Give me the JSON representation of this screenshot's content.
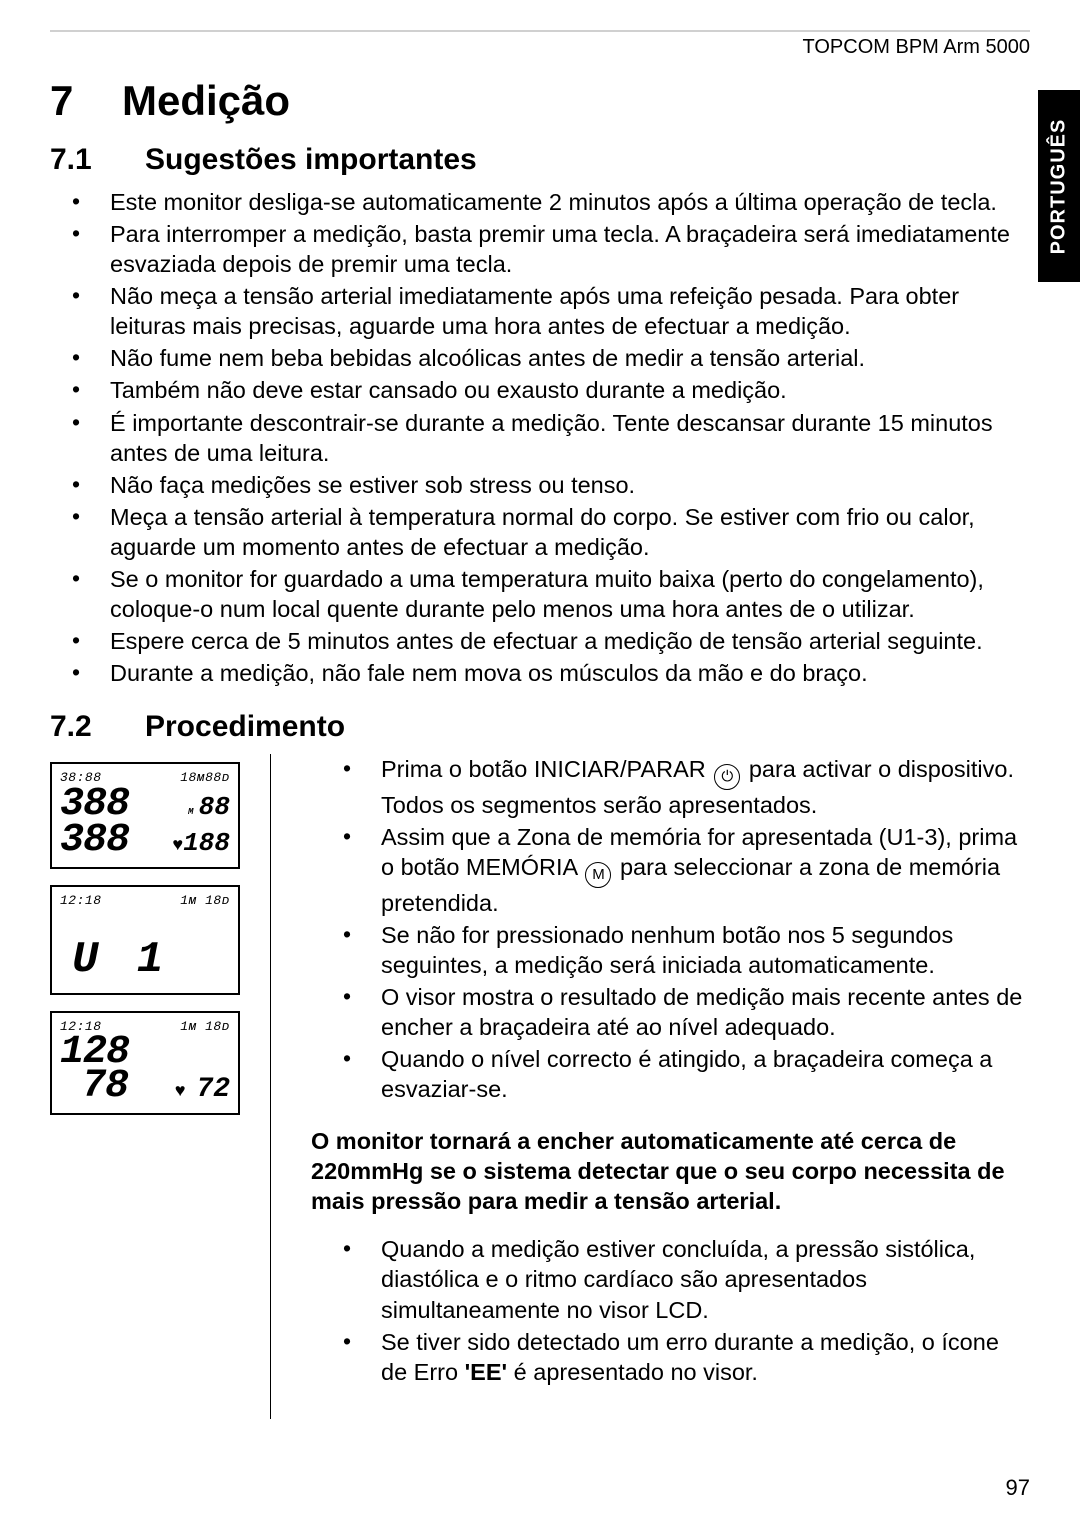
{
  "header": {
    "product": "TOPCOM BPM Arm 5000"
  },
  "side_tab": {
    "label": "PORTUGUÊS"
  },
  "section": {
    "number": "7",
    "title": "Medição"
  },
  "sub71": {
    "number": "7.1",
    "title": "Sugestões importantes",
    "items": [
      "Este monitor desliga-se automaticamente 2 minutos após a última operação de tecla.",
      "Para interromper a medição, basta premir uma tecla. A braçadeira será imediatamente esvaziada depois de premir uma tecla.",
      "Não meça a tensão arterial imediatamente após uma refeição pesada. Para obter leituras mais precisas, aguarde uma hora antes de efectuar a medição.",
      "Não fume nem beba bebidas alcoólicas antes de medir a tensão arterial.",
      "Também não deve estar cansado ou exausto durante a medição.",
      "É importante descontrair-se durante a medição. Tente descansar durante 15 minutos antes de uma leitura.",
      "Não faça medições se estiver sob stress ou tenso.",
      "Meça a tensão arterial à temperatura normal do corpo. Se estiver com frio ou calor, aguarde um momento antes de efectuar a medição.",
      "Se o monitor for guardado a uma temperatura muito baixa (perto do congelamento), coloque-o num local quente durante pelo menos uma hora antes de o utilizar.",
      "Espere cerca de 5 minutos antes de efectuar a medição de tensão arterial seguinte.",
      "Durante a medição, não fale nem mova os músculos da mão e do braço."
    ]
  },
  "sub72": {
    "number": "7.2",
    "title": "Procedimento",
    "items_a": [
      "Prima o botão INICIAR/PARAR ⏻ para activar o dispositivo. Todos os segmentos serão apresentados.",
      "Assim que a Zona de memória for apresentada (U1-3), prima o botão MEMÓRIA Ⓜ para seleccionar a zona de memória pretendida.",
      "Se não for pressionado nenhum botão nos 5 segundos seguintes, a medição será iniciada automaticamente.",
      "O visor mostra o resultado de medição mais recente antes de encher a braçadeira até ao nível adequado.",
      "Quando o nível correcto é atingido, a braçadeira começa a esvaziar-se."
    ],
    "bold_note": "O monitor tornará a encher automaticamente até cerca de 220mmHg se o sistema detectar que o seu corpo necessita de mais pressão para medir a tensão arterial.",
    "items_b": [
      "Quando a medição estiver concluída, a pressão sistólica, diastólica e o ritmo cardíaco são apresentados simultaneamente no visor LCD.",
      "Se tiver sido detectado um erro durante a medição, o ícone de Erro 'EE' é apresentado no visor."
    ]
  },
  "lcd1": {
    "time": "38:88",
    "date": "18ᴍ88ᴅ",
    "sys": "388",
    "sys_r": "88",
    "dia": "388",
    "dia_r": "188"
  },
  "lcd2": {
    "time": "12:18",
    "date": "1ᴍ 18ᴅ",
    "user": "U 1"
  },
  "lcd3": {
    "time": "12:18",
    "date": "1ᴍ 18ᴅ",
    "sys": "128",
    "dia": "78",
    "pulse": "72"
  },
  "page_number": "97",
  "icons": {
    "power": "⏻",
    "memory": "M"
  },
  "colors": {
    "text": "#000000",
    "bg": "#ffffff",
    "rule": "#d0d0d0",
    "tab_bg": "#000000",
    "tab_fg": "#ffffff"
  }
}
